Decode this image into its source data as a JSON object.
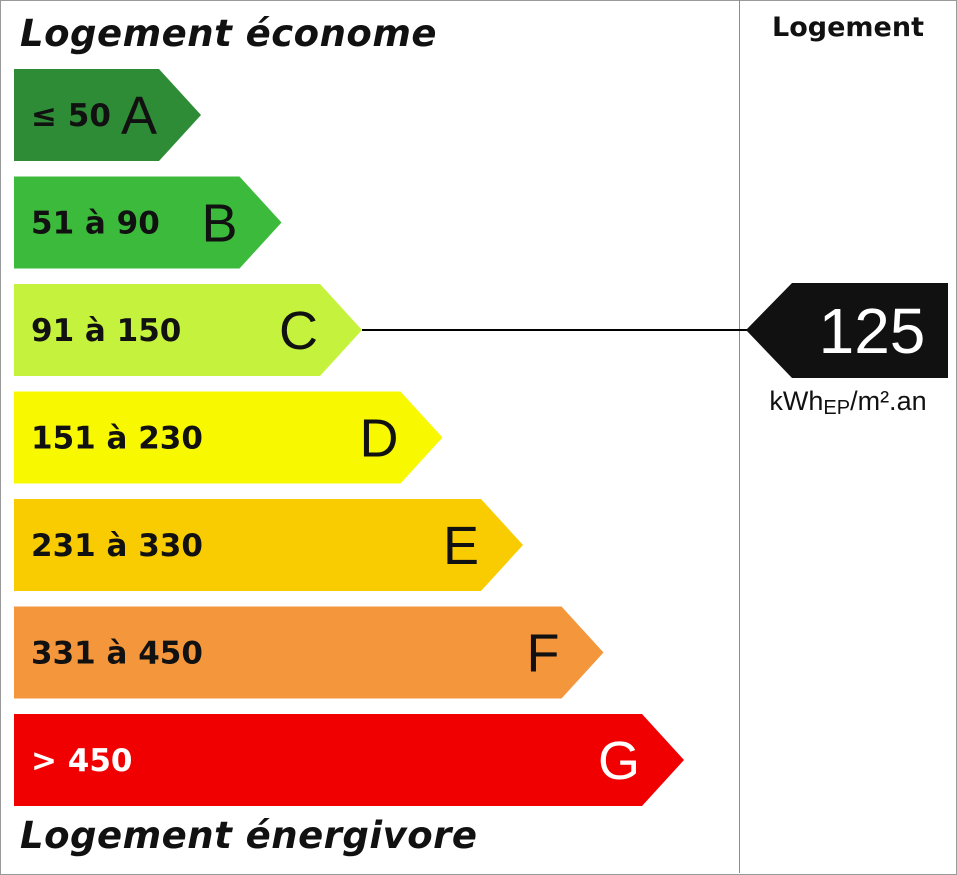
{
  "header": {
    "top_label": "Logement économe",
    "bottom_label": "Logement énergivore",
    "column_label": "Logement"
  },
  "chart_data": {
    "type": "bar",
    "categories": [
      "A",
      "B",
      "C",
      "D",
      "E",
      "F",
      "G"
    ],
    "ranges": [
      "≤ 50",
      "51 à 90",
      "91 à 150",
      "151 à 230",
      "231 à 330",
      "331 à 450",
      "> 450"
    ],
    "colors": [
      "#2e8c36",
      "#3cba3c",
      "#c5f23c",
      "#f8f800",
      "#f8cc00",
      "#f4963c",
      "#f00000"
    ],
    "selected_value": 125,
    "selected_class": "C",
    "unit": {
      "main": "kWh",
      "subscript": "EP",
      "suffix": "/m².an"
    }
  }
}
